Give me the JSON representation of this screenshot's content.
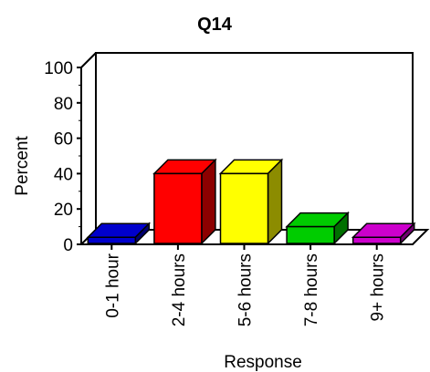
{
  "chart_data": {
    "type": "bar",
    "title": "Q14",
    "xlabel": "Response",
    "ylabel": "Percent",
    "ylim": [
      0,
      100
    ],
    "yticks": [
      "0",
      "20",
      "40",
      "60",
      "80",
      "100"
    ],
    "categories": [
      "0-1 hour",
      "2-4 hours",
      "5-6 hours",
      "7-8 hours",
      "9+ hours"
    ],
    "values": [
      4,
      40,
      40,
      10,
      4
    ],
    "colors": [
      "#0000cc",
      "#ff0000",
      "#ffff00",
      "#00cc00",
      "#cc00cc"
    ],
    "grid": false,
    "legend": "none",
    "style": "3d"
  }
}
